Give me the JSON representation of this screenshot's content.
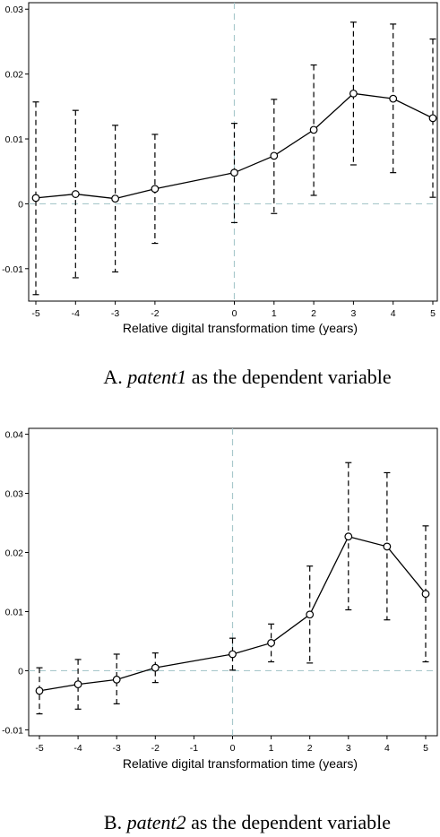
{
  "chart_data": [
    {
      "type": "line",
      "subtitle_prefix": "A. ",
      "subtitle_var": "patent1",
      "subtitle_rest": " as the dependent variable",
      "xlabel": "Relative digital transformation time (years)",
      "ylabel": "",
      "xlim": [
        -5,
        5
      ],
      "ylim": [
        -0.015,
        0.031
      ],
      "x_ticks": [
        "-5",
        "-4",
        "-3",
        "-2",
        "0",
        "1",
        "2",
        "3",
        "4",
        "5"
      ],
      "y_ticks": [
        "-0.01",
        "0",
        "0.01",
        "0.02",
        "0.03"
      ],
      "x": [
        -5,
        -4,
        -3,
        -2,
        0,
        1,
        2,
        3,
        4,
        5
      ],
      "series": [
        {
          "values": [
            0.0009,
            0.0015,
            0.0008,
            0.0023,
            0.0048,
            0.0074,
            0.0114,
            0.017,
            0.0162,
            0.0132
          ],
          "ci_low": [
            -0.014,
            -0.0114,
            -0.0105,
            -0.0061,
            -0.0029,
            -0.0015,
            0.0013,
            0.006,
            0.0048,
            0.001
          ],
          "ci_high": [
            0.0157,
            0.0144,
            0.0121,
            0.0107,
            0.0124,
            0.0161,
            0.0214,
            0.028,
            0.0277,
            0.0254
          ]
        }
      ],
      "reference_lines": {
        "x": 0,
        "y": 0
      },
      "grid": false
    },
    {
      "type": "line",
      "subtitle_prefix": "B. ",
      "subtitle_var": "patent2",
      "subtitle_rest": " as the dependent variable",
      "xlabel": "Relative digital transformation time (years)",
      "ylabel": "",
      "xlim": [
        -5,
        5
      ],
      "ylim": [
        -0.011,
        0.041
      ],
      "x_ticks": [
        "-5",
        "-4",
        "-3",
        "-2",
        "-1",
        "0",
        "1",
        "2",
        "3",
        "4",
        "5"
      ],
      "y_ticks": [
        "-0.01",
        "0",
        "0.01",
        "0.02",
        "0.03",
        "0.04"
      ],
      "x": [
        -5,
        -4,
        -3,
        -2,
        0,
        1,
        2,
        3,
        4,
        5
      ],
      "series": [
        {
          "values": [
            -0.0034,
            -0.0023,
            -0.0015,
            0.0005,
            0.0028,
            0.0047,
            0.0095,
            0.0227,
            0.021,
            0.013
          ],
          "ci_low": [
            -0.0073,
            -0.0065,
            -0.0056,
            -0.002,
            0.0001,
            0.0015,
            0.0013,
            0.0103,
            0.0086,
            0.0015
          ],
          "ci_high": [
            0.0005,
            0.0019,
            0.0028,
            0.003,
            0.0055,
            0.0079,
            0.0177,
            0.0352,
            0.0335,
            0.0245
          ]
        }
      ],
      "reference_lines": {
        "x": 0,
        "y": 0
      },
      "grid": false
    }
  ]
}
